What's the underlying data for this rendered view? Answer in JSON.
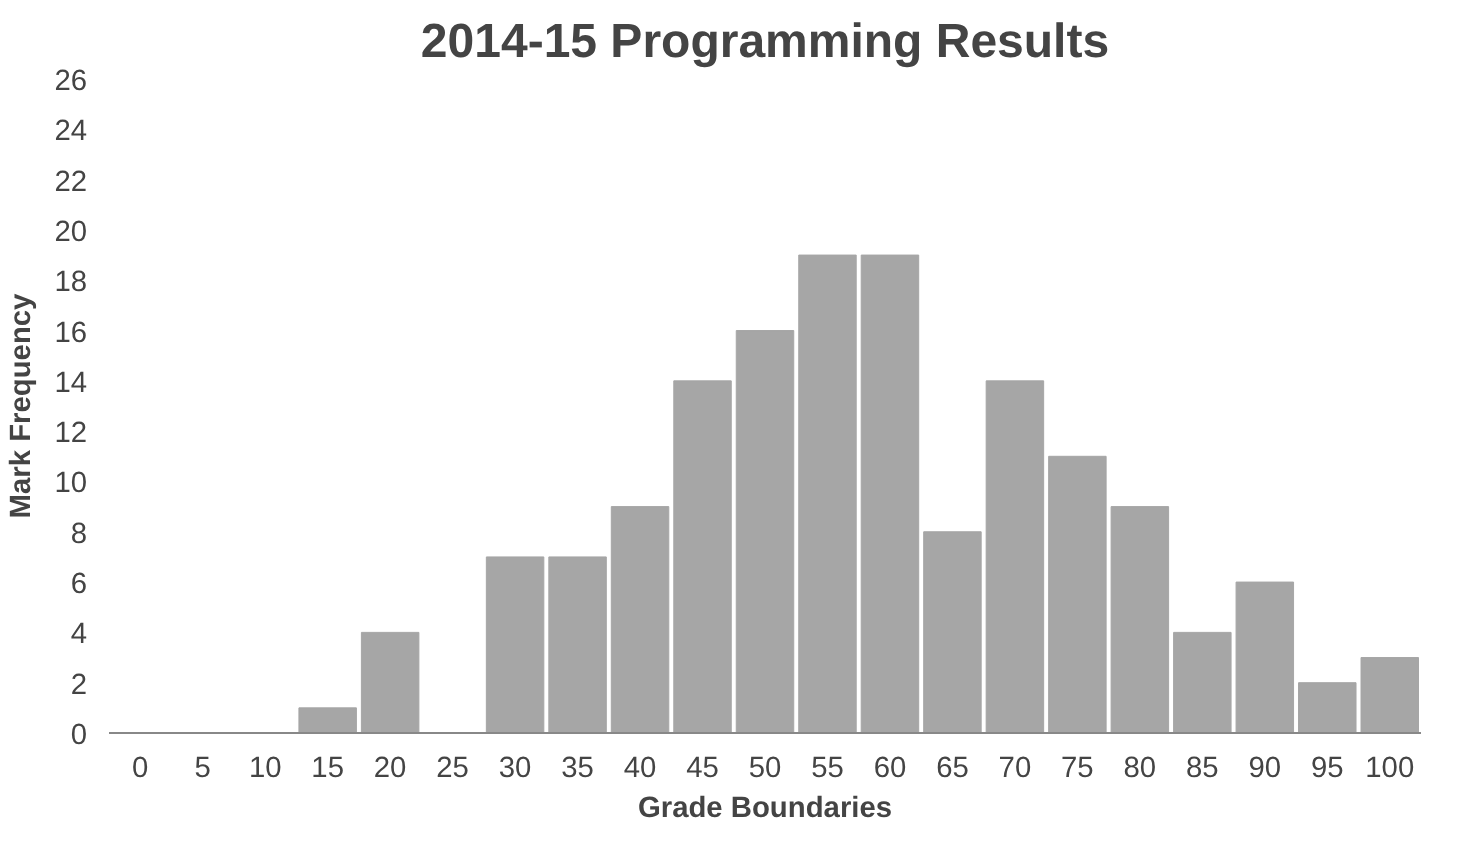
{
  "chart_data": {
    "type": "bar",
    "title": "2014-15 Programming Results",
    "xlabel": "Grade Boundaries",
    "ylabel": "Mark Frequency",
    "categories": [
      "0",
      "5",
      "10",
      "15",
      "20",
      "25",
      "30",
      "35",
      "40",
      "45",
      "50",
      "55",
      "60",
      "65",
      "70",
      "75",
      "80",
      "85",
      "90",
      "95",
      "100"
    ],
    "values": [
      0,
      0,
      0,
      1,
      4,
      0,
      7,
      7,
      9,
      14,
      16,
      19,
      19,
      8,
      14,
      11,
      9,
      4,
      6,
      2,
      3
    ],
    "color": "#a6a6a6",
    "ylim": [
      0,
      26
    ],
    "yticks": [
      0,
      2,
      4,
      6,
      8,
      10,
      12,
      14,
      16,
      18,
      20,
      22,
      24,
      26
    ],
    "grid": false
  }
}
